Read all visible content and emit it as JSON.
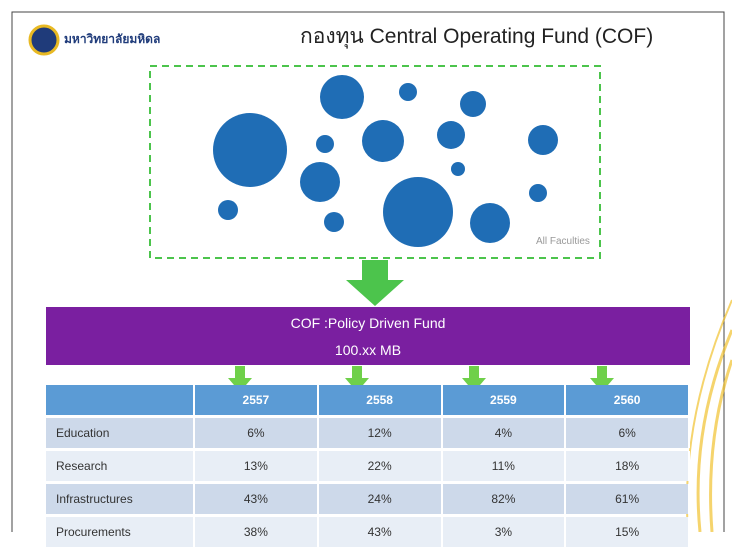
{
  "header": {
    "university": "มหาวิทยาลัยมหิดล",
    "title": "กองทุน Central Operating Fund (COF)"
  },
  "diagram": {
    "label": "All Faculties"
  },
  "banner": {
    "line1": "COF :Policy Driven Fund",
    "line2": "100.xx MB"
  },
  "table": {
    "columns": [
      "2557",
      "2558",
      "2559",
      "2560"
    ],
    "rows": [
      [
        "Education",
        "6%",
        "12%",
        "4%",
        "6%"
      ],
      [
        "Research",
        "13%",
        "22%",
        "11%",
        "18%"
      ],
      [
        "Infrastructures",
        "43%",
        "24%",
        "82%",
        "61%"
      ],
      [
        "Procurements",
        "38%",
        "43%",
        "3%",
        "15%"
      ]
    ]
  }
}
